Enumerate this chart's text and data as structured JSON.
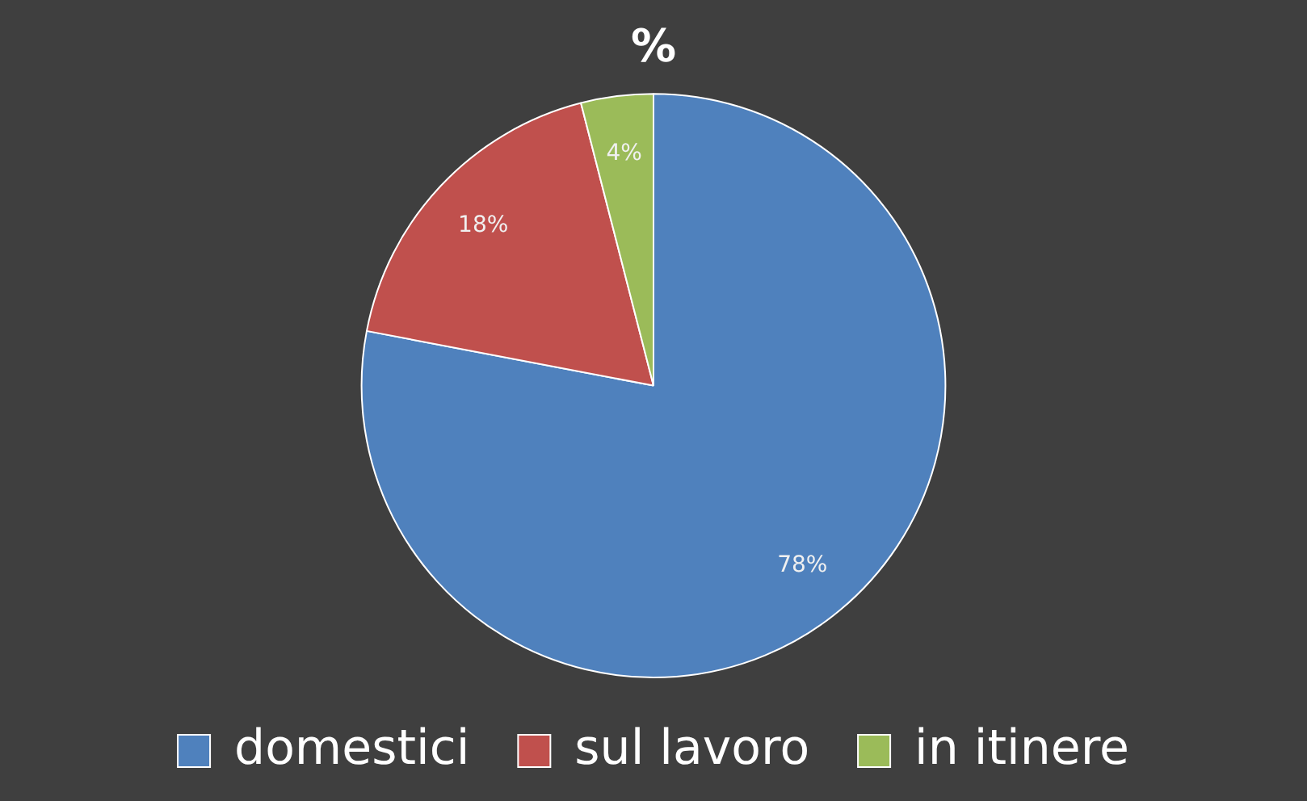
{
  "chart_data": {
    "type": "pie",
    "title": "%",
    "categories": [
      "domestici",
      "sul lavoro",
      "in itinere"
    ],
    "values": [
      78,
      18,
      4
    ],
    "value_labels": [
      "78%",
      "18%",
      "4%"
    ],
    "colors": [
      "#4f81bd",
      "#c0504d",
      "#9bbb59"
    ],
    "legend": "bottom"
  }
}
